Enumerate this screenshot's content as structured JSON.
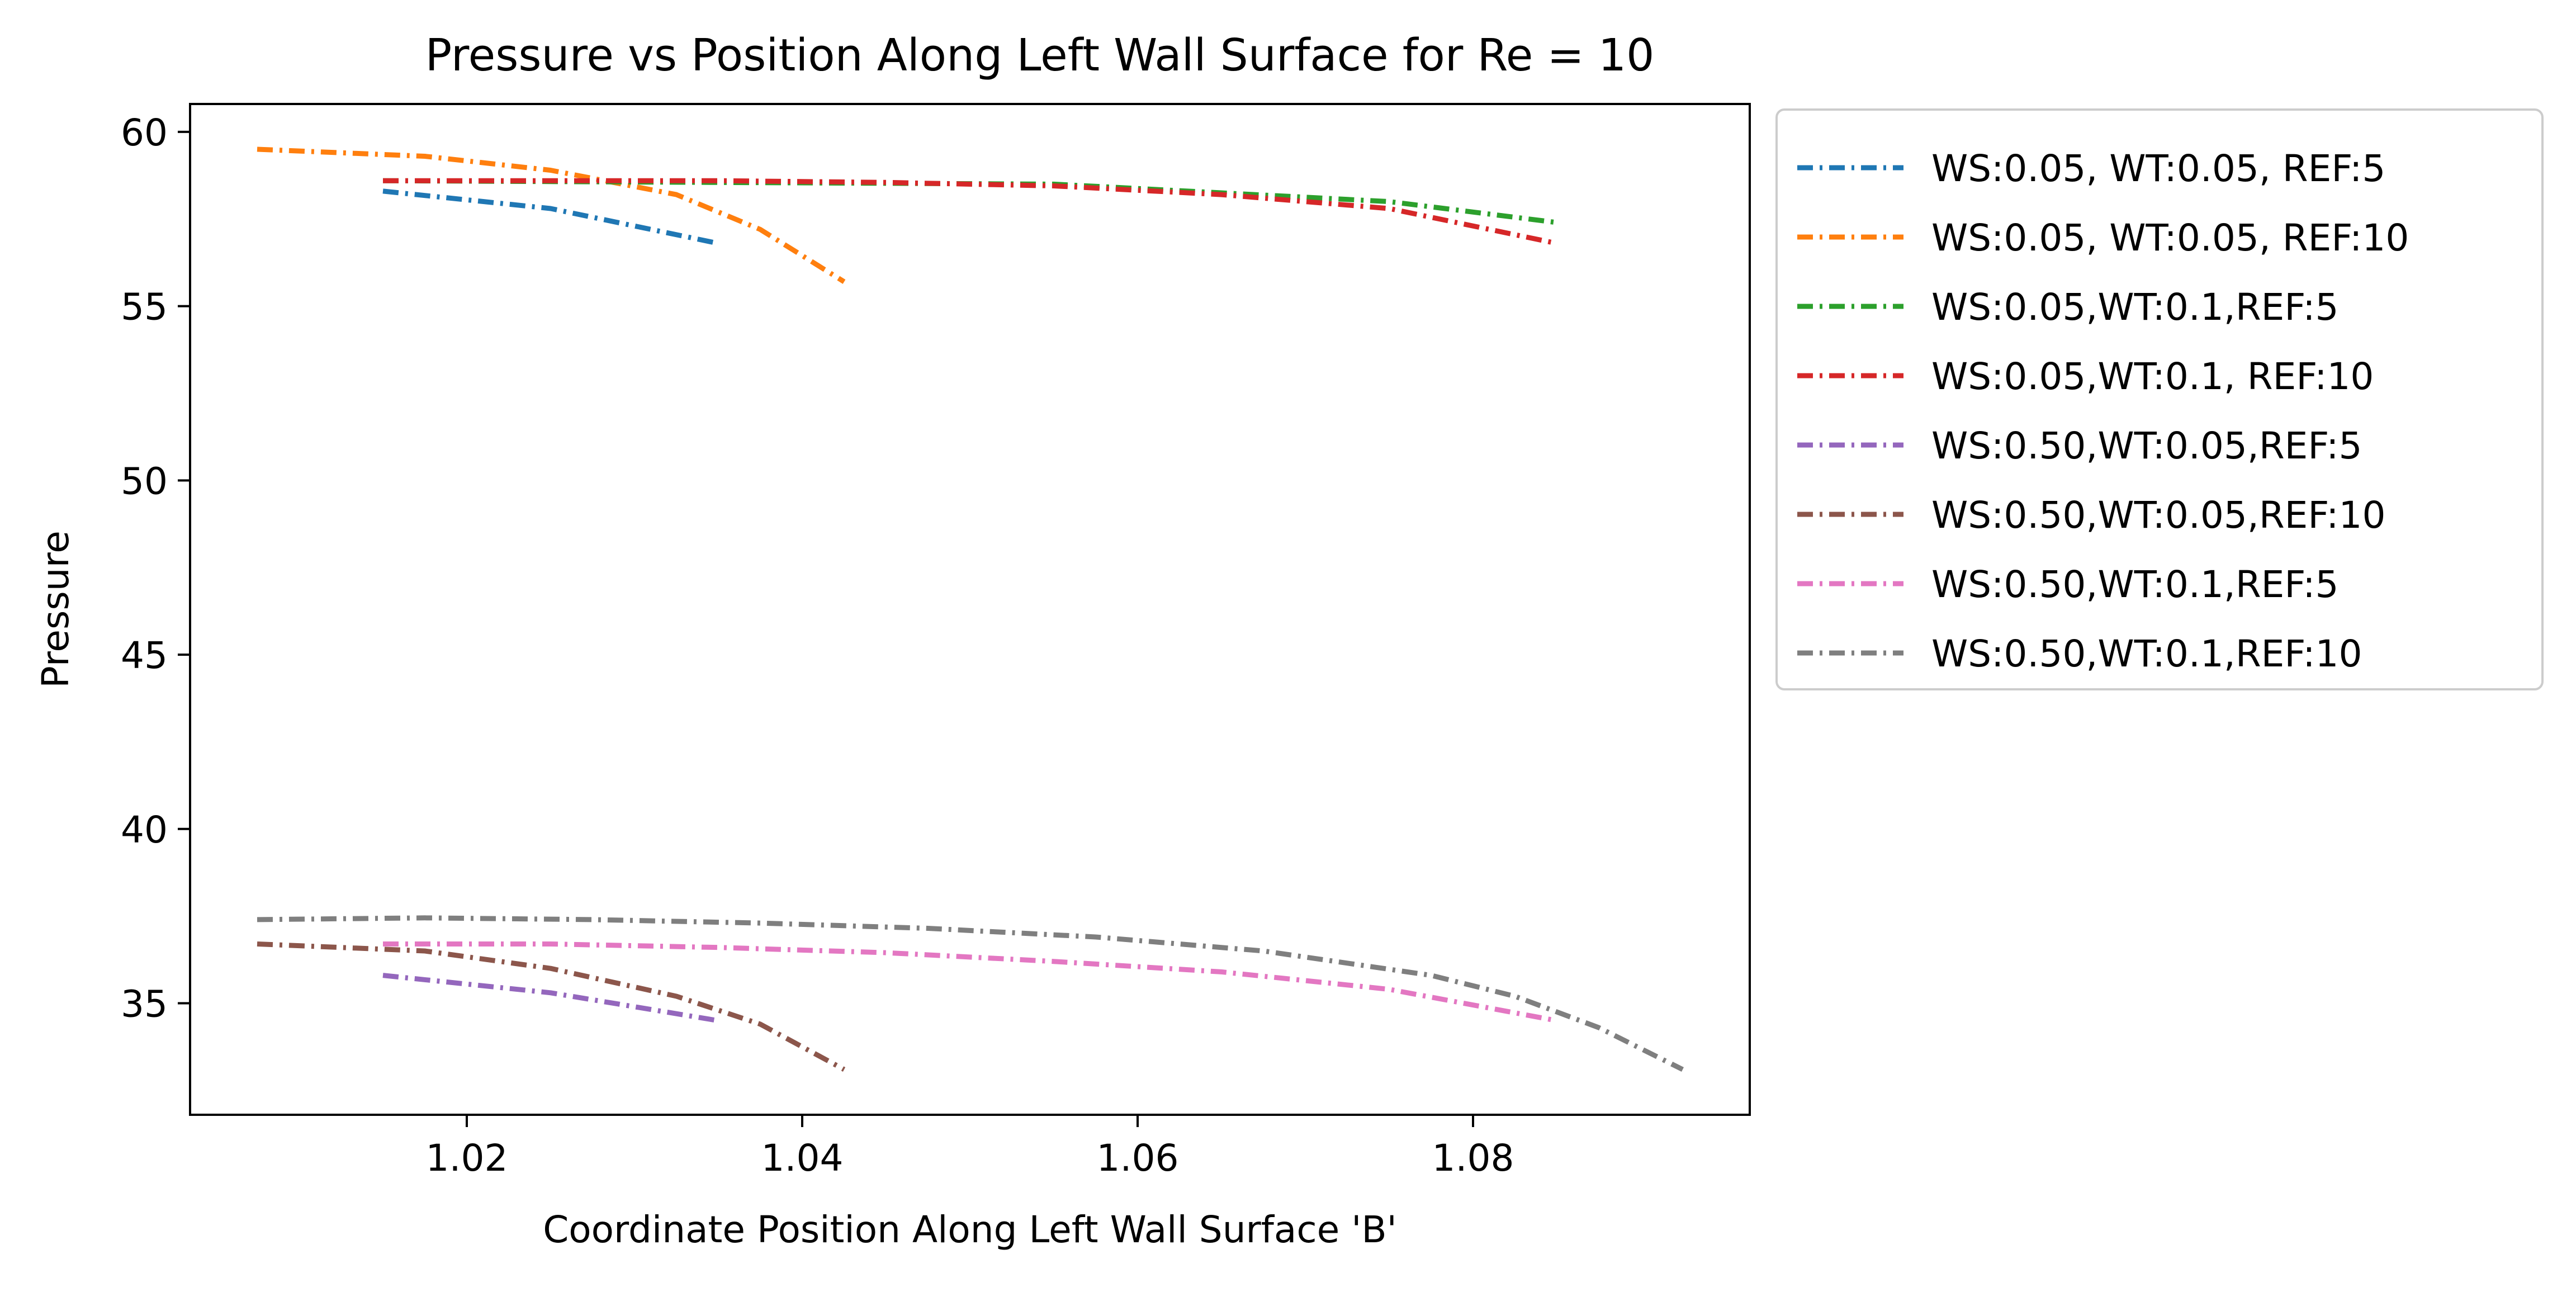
{
  "chart_data": {
    "type": "line",
    "title": "Pressure vs Position Along Left Wall Surface for Re = 10",
    "xlabel": "Coordinate Position Along Left Wall Surface 'B'",
    "ylabel": "Pressure",
    "xlim": [
      1.0035,
      1.0965
    ],
    "ylim": [
      31.8,
      60.8
    ],
    "xticks": [
      1.02,
      1.04,
      1.06,
      1.08
    ],
    "yticks": [
      35,
      40,
      45,
      50,
      55,
      60
    ],
    "xtick_labels": [
      "1.02",
      "1.04",
      "1.06",
      "1.08"
    ],
    "ytick_labels": [
      "35",
      "40",
      "45",
      "50",
      "55",
      "60"
    ],
    "grid": false,
    "legend_position": "outside-right",
    "line_style": "dash-dot",
    "series": [
      {
        "name": "WS:0.05, WT:0.05, REF:5",
        "color": "#1f77b4",
        "x": [
          1.015,
          1.025,
          1.035
        ],
        "y": [
          58.3,
          57.8,
          56.8
        ]
      },
      {
        "name": "WS:0.05, WT:0.05, REF:10",
        "color": "#ff7f0e",
        "x": [
          1.0075,
          1.0175,
          1.025,
          1.0325,
          1.0375,
          1.0425
        ],
        "y": [
          59.5,
          59.3,
          58.9,
          58.2,
          57.2,
          55.7
        ]
      },
      {
        "name": "WS:0.05,WT:0.1,REF:5",
        "color": "#2ca02c",
        "x": [
          1.015,
          1.035,
          1.055,
          1.075,
          1.085
        ],
        "y": [
          58.6,
          58.55,
          58.5,
          58.0,
          57.4
        ]
      },
      {
        "name": "WS:0.05,WT:0.1, REF:10",
        "color": "#d62728",
        "x": [
          1.015,
          1.025,
          1.035,
          1.045,
          1.055,
          1.065,
          1.075,
          1.085
        ],
        "y": [
          58.6,
          58.6,
          58.6,
          58.55,
          58.45,
          58.2,
          57.8,
          56.8
        ]
      },
      {
        "name": "WS:0.50,WT:0.05,REF:5",
        "color": "#9467bd",
        "x": [
          1.015,
          1.025,
          1.035
        ],
        "y": [
          35.8,
          35.3,
          34.5
        ]
      },
      {
        "name": "WS:0.50,WT:0.05,REF:10",
        "color": "#8c564b",
        "x": [
          1.0075,
          1.0175,
          1.025,
          1.0325,
          1.0375,
          1.0425
        ],
        "y": [
          36.7,
          36.5,
          36.0,
          35.2,
          34.4,
          33.1
        ]
      },
      {
        "name": "WS:0.50,WT:0.1,REF:5",
        "color": "#e377c2",
        "x": [
          1.015,
          1.025,
          1.035,
          1.045,
          1.055,
          1.065,
          1.075,
          1.085
        ],
        "y": [
          36.7,
          36.7,
          36.6,
          36.45,
          36.2,
          35.9,
          35.4,
          34.5
        ]
      },
      {
        "name": "WS:0.50,WT:0.1,REF:10",
        "color": "#7f7f7f",
        "x": [
          1.0075,
          1.0175,
          1.0275,
          1.0375,
          1.0475,
          1.0575,
          1.0675,
          1.0775,
          1.0825,
          1.0875,
          1.0925
        ],
        "y": [
          37.4,
          37.45,
          37.4,
          37.3,
          37.15,
          36.9,
          36.5,
          35.8,
          35.2,
          34.3,
          33.1
        ]
      }
    ]
  }
}
